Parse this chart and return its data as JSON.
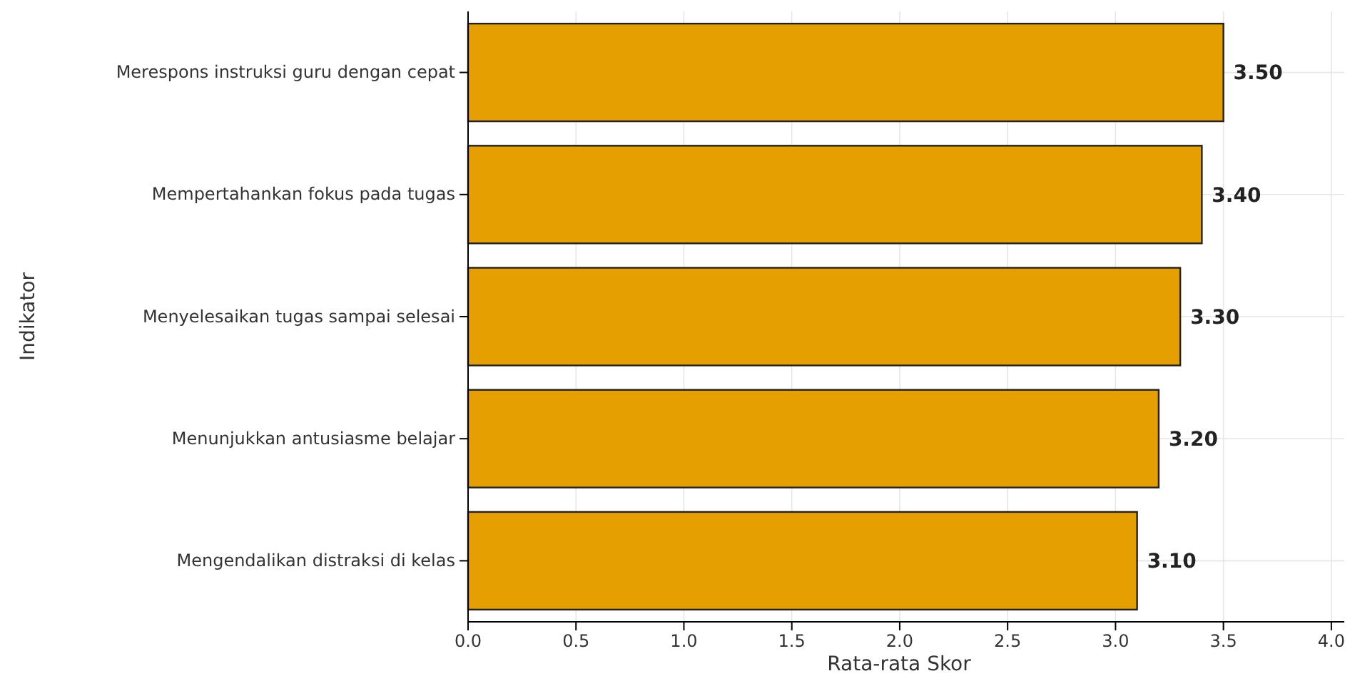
{
  "chart_data": {
    "type": "bar",
    "orientation": "horizontal",
    "xlabel": "Rata-rata Skor",
    "ylabel": "Indikator",
    "categories": [
      "Merespons instruksi guru dengan cepat",
      "Mempertahankan fokus pada tugas",
      "Menyelesaikan tugas sampai selesai",
      "Menunjukkan antusiasme belajar",
      "Mengendalikan distraksi di kelas"
    ],
    "values": [
      3.5,
      3.4,
      3.3,
      3.2,
      3.1
    ],
    "value_labels": [
      "3.50",
      "3.40",
      "3.30",
      "3.20",
      "3.10"
    ],
    "color": "#e69f00",
    "xlim": [
      0,
      4.06
    ],
    "xticks": [
      {
        "value": 0,
        "label": "0.0"
      },
      {
        "value": 0.5,
        "label": "0.5"
      },
      {
        "value": 1,
        "label": "1.0"
      },
      {
        "value": 1.5,
        "label": "1.5"
      },
      {
        "value": 2,
        "label": "2.0"
      },
      {
        "value": 2.5,
        "label": "2.5"
      },
      {
        "value": 3,
        "label": "3.0"
      },
      {
        "value": 3.5,
        "label": "3.5"
      },
      {
        "value": 4,
        "label": "4.0"
      }
    ],
    "grid": true
  }
}
